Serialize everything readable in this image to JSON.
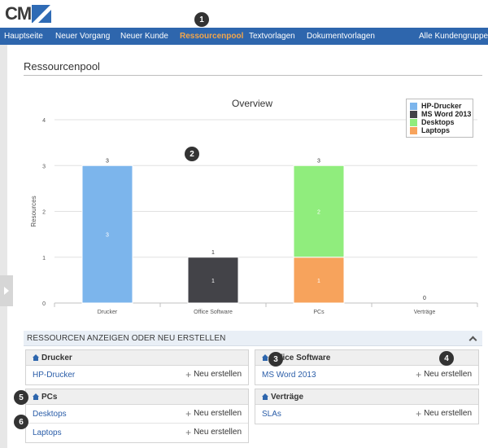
{
  "logo": {
    "text": "CM"
  },
  "nav": {
    "items": [
      {
        "label": "Hauptseite"
      },
      {
        "label": "Neuer Vorgang"
      },
      {
        "label": "Neuer Kunde"
      },
      {
        "label": "Ressourcenpool",
        "active": true
      },
      {
        "label": "Textvorlagen"
      },
      {
        "label": "Dokumentvorlagen"
      },
      {
        "label": "Alle Kundengruppen"
      }
    ]
  },
  "page": {
    "title": "Ressourcenpool"
  },
  "badges": [
    "1",
    "2",
    "3",
    "4",
    "5",
    "6"
  ],
  "chart_data": {
    "type": "bar",
    "stacked": true,
    "title": "Overview",
    "ylabel": "Resources",
    "xlabel": "",
    "ylim": [
      0,
      4
    ],
    "yticks": [
      0,
      1,
      2,
      3,
      4
    ],
    "categories": [
      "Drucker",
      "Office Software",
      "PCs",
      "Verträge"
    ],
    "series": [
      {
        "name": "HP-Drucker",
        "color": "#7cb5ec",
        "values": [
          3,
          0,
          0,
          0
        ]
      },
      {
        "name": "MS Word 2013",
        "color": "#434348",
        "values": [
          0,
          1,
          0,
          0
        ]
      },
      {
        "name": "Desktops",
        "color": "#90ed7d",
        "values": [
          0,
          0,
          2,
          0
        ]
      },
      {
        "name": "Laptops",
        "color": "#f7a35c",
        "values": [
          0,
          0,
          1,
          0
        ]
      }
    ],
    "totals": [
      3,
      1,
      3,
      0
    ],
    "legend": "top-right",
    "grid": true
  },
  "section": {
    "title": "RESSOURCEN ANZEIGEN ODER NEU ERSTELLEN"
  },
  "groups": [
    {
      "title": "Drucker",
      "items": [
        {
          "name": "HP-Drucker",
          "action": "Neu erstellen"
        }
      ]
    },
    {
      "title": "Office Software",
      "items": [
        {
          "name": "MS Word 2013",
          "action": "Neu erstellen"
        }
      ]
    },
    {
      "title": "PCs",
      "items": [
        {
          "name": "Desktops",
          "action": "Neu erstellen"
        },
        {
          "name": "Laptops",
          "action": "Neu erstellen"
        }
      ]
    },
    {
      "title": "Verträge",
      "items": [
        {
          "name": "SLAs",
          "action": "Neu erstellen"
        }
      ]
    }
  ],
  "icons": {
    "home": "home-icon",
    "plus": "plus-icon",
    "collapse": "chevron-up-icon",
    "expand": "chevron-right-icon"
  }
}
